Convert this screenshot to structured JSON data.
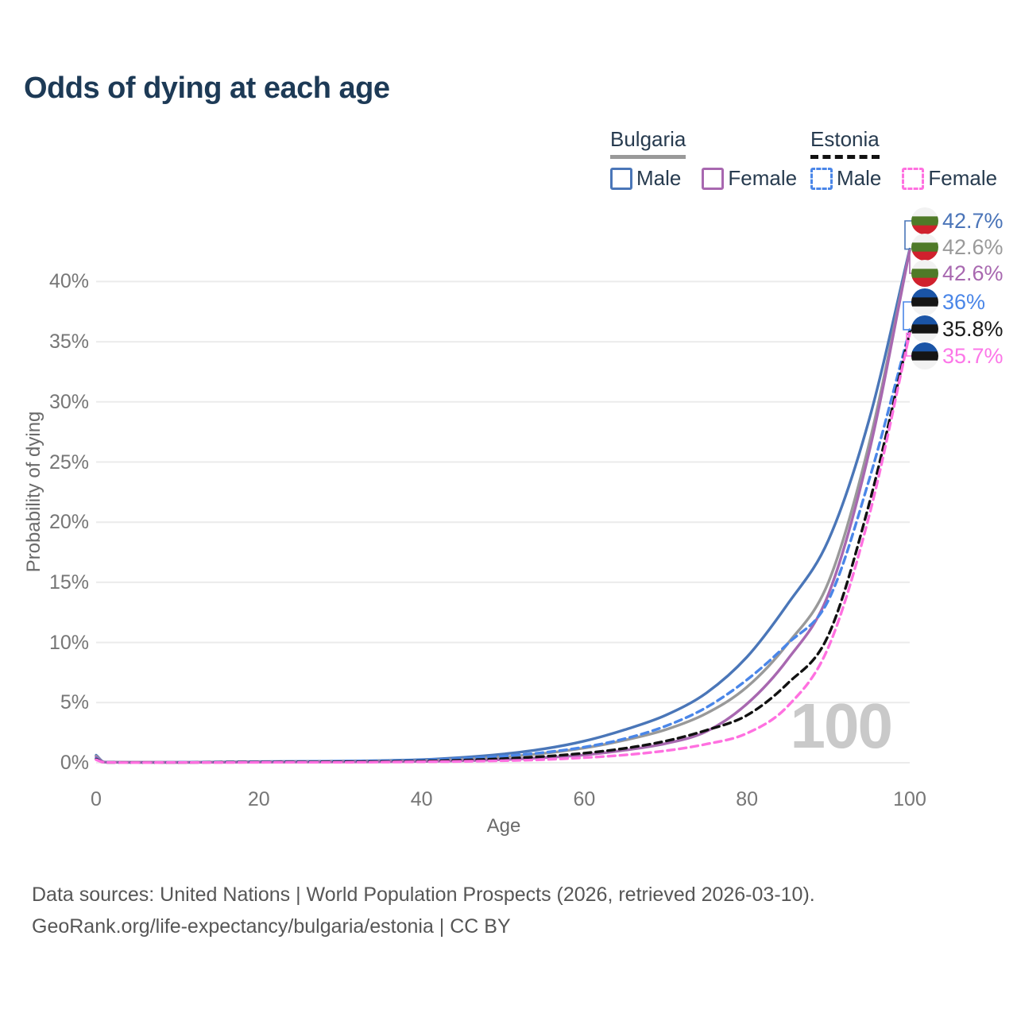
{
  "header": {
    "title": "Odds of dying at each age"
  },
  "legend": {
    "groups": [
      {
        "name": "Bulgaria",
        "line_style": "solid",
        "line_color": "#999999",
        "items": [
          {
            "label": "Male",
            "color": "#4a76b8",
            "box_style": "solid"
          },
          {
            "label": "Female",
            "color": "#a868b0",
            "box_style": "solid"
          }
        ]
      },
      {
        "name": "Estonia",
        "line_style": "dashed",
        "line_color": "#111111",
        "items": [
          {
            "label": "Male",
            "color": "#4a86e8",
            "box_style": "dashed"
          },
          {
            "label": "Female",
            "color": "#ff70e0",
            "box_style": "dashed"
          }
        ]
      }
    ]
  },
  "chart_data": {
    "type": "line",
    "title": "Odds of dying at each age",
    "xlabel": "Age",
    "ylabel": "Probability of dying",
    "xlim": [
      0,
      100
    ],
    "ylim": [
      0,
      44
    ],
    "grid": "horizontal-only",
    "watermark": "100",
    "x_ticks": [
      {
        "value": 0,
        "label": "0"
      },
      {
        "value": 20,
        "label": "20"
      },
      {
        "value": 40,
        "label": "40"
      },
      {
        "value": 60,
        "label": "60"
      },
      {
        "value": 80,
        "label": "80"
      },
      {
        "value": 100,
        "label": "100"
      }
    ],
    "y_ticks": [
      {
        "value": 0,
        "label": "0%"
      },
      {
        "value": 5,
        "label": "5%"
      },
      {
        "value": 10,
        "label": "10%"
      },
      {
        "value": 15,
        "label": "15%"
      },
      {
        "value": 20,
        "label": "20%"
      },
      {
        "value": 25,
        "label": "25%"
      },
      {
        "value": 30,
        "label": "30%"
      },
      {
        "value": 35,
        "label": "35%"
      },
      {
        "value": 40,
        "label": "40%"
      }
    ],
    "ages": [
      0,
      1,
      5,
      10,
      15,
      20,
      25,
      30,
      35,
      40,
      45,
      50,
      55,
      60,
      65,
      70,
      75,
      80,
      85,
      90,
      95,
      100
    ],
    "series": [
      {
        "name": "Bulgaria Male",
        "country": "bulgaria",
        "color": "#4a76b8",
        "dash": "solid",
        "values": [
          0.62,
          0.06,
          0.04,
          0.04,
          0.06,
          0.09,
          0.11,
          0.14,
          0.18,
          0.26,
          0.44,
          0.72,
          1.15,
          1.8,
          2.75,
          3.95,
          5.8,
          8.8,
          13.2,
          18.5,
          28.5,
          42.7
        ]
      },
      {
        "name": "Bulgaria (both sexes)",
        "country": "bulgaria",
        "color": "#999999",
        "dash": "solid",
        "values": [
          0.55,
          0.05,
          0.03,
          0.03,
          0.05,
          0.07,
          0.08,
          0.1,
          0.13,
          0.18,
          0.3,
          0.48,
          0.78,
          1.22,
          1.88,
          2.75,
          4.1,
          6.3,
          9.9,
          15.0,
          26.5,
          42.6
        ]
      },
      {
        "name": "Bulgaria Female",
        "country": "bulgaria",
        "color": "#a868b0",
        "dash": "solid",
        "values": [
          0.47,
          0.05,
          0.03,
          0.03,
          0.04,
          0.05,
          0.06,
          0.07,
          0.08,
          0.11,
          0.16,
          0.26,
          0.42,
          0.65,
          1.05,
          1.6,
          2.6,
          4.9,
          8.6,
          14.0,
          25.8,
          42.6
        ]
      },
      {
        "name": "Estonia Male",
        "country": "estonia",
        "color": "#4a86e8",
        "dash": "dashed",
        "values": [
          0.36,
          0.04,
          0.02,
          0.03,
          0.05,
          0.08,
          0.1,
          0.12,
          0.16,
          0.22,
          0.35,
          0.55,
          0.85,
          1.3,
          2.0,
          3.05,
          4.6,
          6.9,
          9.9,
          13.5,
          23.5,
          36.0
        ]
      },
      {
        "name": "Estonia (both sexes)",
        "country": "estonia",
        "color": "#111111",
        "dash": "dashed",
        "values": [
          0.3,
          0.03,
          0.02,
          0.02,
          0.04,
          0.06,
          0.07,
          0.08,
          0.1,
          0.14,
          0.22,
          0.34,
          0.52,
          0.8,
          1.2,
          1.8,
          2.7,
          3.95,
          6.6,
          10.6,
          21.5,
          35.8
        ]
      },
      {
        "name": "Estonia Female",
        "country": "estonia",
        "color": "#ff70e0",
        "dash": "dashed",
        "values": [
          0.25,
          0.03,
          0.01,
          0.02,
          0.02,
          0.03,
          0.04,
          0.04,
          0.05,
          0.08,
          0.11,
          0.17,
          0.26,
          0.42,
          0.65,
          1.0,
          1.55,
          2.45,
          4.7,
          9.6,
          20.5,
          35.7
        ]
      }
    ],
    "end_labels": [
      {
        "text": "42.7%",
        "color": "#4a74b8",
        "flag": "bulgaria",
        "series": "Bulgaria Male"
      },
      {
        "text": "42.6%",
        "color": "#9a9a9a",
        "flag": "bulgaria",
        "series": "Bulgaria (both sexes)"
      },
      {
        "text": "42.6%",
        "color": "#a868b0",
        "flag": "bulgaria",
        "series": "Bulgaria Female"
      },
      {
        "text": "36%",
        "color": "#4a86e8",
        "flag": "estonia",
        "series": "Estonia Male"
      },
      {
        "text": "35.8%",
        "color": "#1a1a1a",
        "flag": "estonia",
        "series": "Estonia (both sexes)"
      },
      {
        "text": "35.7%",
        "color": "#fc77e8",
        "flag": "estonia",
        "series": "Estonia Female"
      }
    ],
    "flag_colors": {
      "bulgaria": [
        "#f2f2f2",
        "#4f7a28",
        "#d0212d"
      ],
      "estonia": [
        "#1a54a6",
        "#151515",
        "#f2f2f2"
      ]
    },
    "gridline_color": "#ebebeb"
  },
  "footer": {
    "line1": "Data sources: United Nations | World Population Prospects (2026, retrieved 2026-03-10).",
    "line2": "GeoRank.org/life-expectancy/bulgaria/estonia | CC BY"
  }
}
